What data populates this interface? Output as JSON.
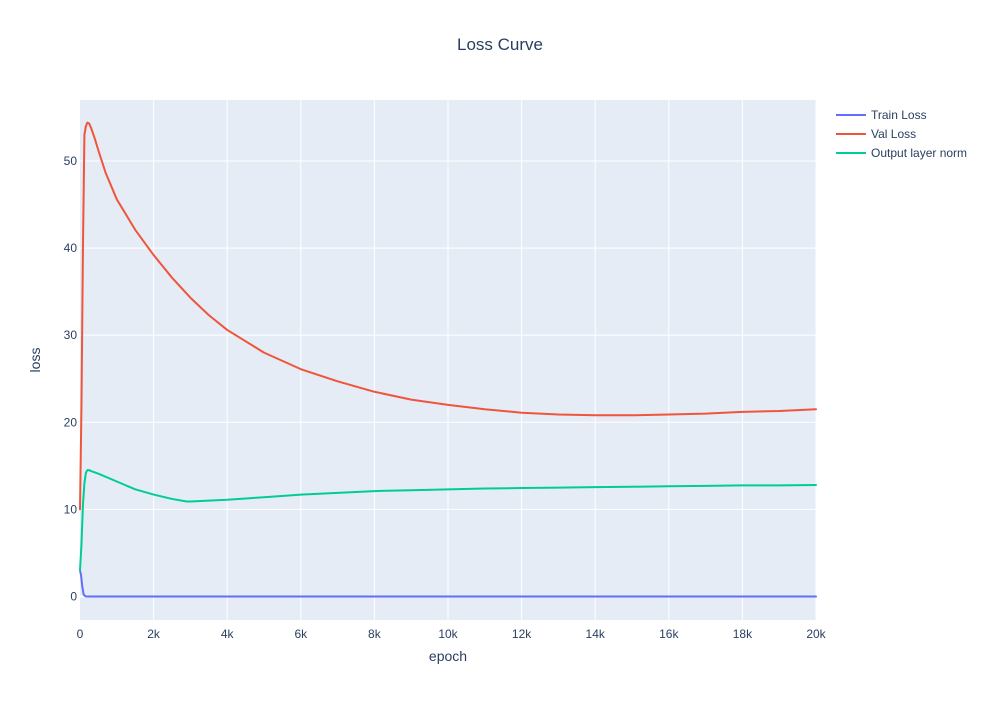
{
  "chart_data": {
    "type": "line",
    "title": "Loss Curve",
    "xlabel": "epoch",
    "ylabel": "loss",
    "xlim": [
      0,
      20000
    ],
    "ylim": [
      -2.7,
      57
    ],
    "x_ticks": [
      0,
      2000,
      4000,
      6000,
      8000,
      10000,
      12000,
      14000,
      16000,
      18000,
      20000
    ],
    "x_tick_labels": [
      "0",
      "2k",
      "4k",
      "6k",
      "8k",
      "10k",
      "12k",
      "14k",
      "16k",
      "18k",
      "20k"
    ],
    "y_ticks": [
      0,
      10,
      20,
      30,
      40,
      50
    ],
    "y_tick_labels": [
      "0",
      "10",
      "20",
      "30",
      "40",
      "50"
    ],
    "grid": true,
    "legend_position": "top-right-outside",
    "colors": {
      "plot_bg": "#E5ECF6",
      "grid": "#FFFFFF",
      "text": "#2a3f5f"
    },
    "series": [
      {
        "name": "Train Loss",
        "color": "#636EFA",
        "x": [
          0,
          30,
          60,
          100,
          150,
          200,
          500,
          1000,
          2000,
          4000,
          6000,
          8000,
          10000,
          12000,
          14000,
          16000,
          18000,
          20000
        ],
        "y": [
          3.0,
          2.4,
          1.2,
          0.2,
          0.02,
          0,
          0,
          0,
          0,
          0,
          0,
          0,
          0,
          0,
          0,
          0,
          0,
          0
        ]
      },
      {
        "name": "Val Loss",
        "color": "#EF553B",
        "x": [
          0,
          40,
          80,
          120,
          160,
          200,
          250,
          300,
          400,
          500,
          700,
          1000,
          1500,
          2000,
          2500,
          3000,
          3500,
          4000,
          5000,
          6000,
          7000,
          8000,
          9000,
          10000,
          11000,
          12000,
          13000,
          14000,
          14500,
          15000,
          16000,
          17000,
          18000,
          19000,
          20000
        ],
        "y": [
          10,
          22,
          40,
          53,
          54.0,
          54.4,
          54.3,
          53.8,
          52.6,
          51.2,
          48.6,
          45.6,
          42.1,
          39.2,
          36.6,
          34.3,
          32.3,
          30.6,
          28.0,
          26.1,
          24.7,
          23.5,
          22.6,
          22.0,
          21.5,
          21.1,
          20.9,
          20.8,
          20.8,
          20.8,
          20.9,
          21.0,
          21.2,
          21.3,
          21.5
        ]
      },
      {
        "name": "Output layer norm",
        "color": "#00CC96",
        "x": [
          0,
          40,
          80,
          120,
          160,
          200,
          250,
          300,
          500,
          1000,
          1500,
          2000,
          2500,
          2900,
          3000,
          3500,
          4000,
          5000,
          6000,
          7000,
          8000,
          9000,
          10000,
          11000,
          12000,
          13000,
          14000,
          15000,
          16000,
          17000,
          18000,
          19000,
          20000
        ],
        "y": [
          3.0,
          6.0,
          10.5,
          13.0,
          14.2,
          14.5,
          14.5,
          14.4,
          14.1,
          13.2,
          12.3,
          11.7,
          11.2,
          10.9,
          10.9,
          11.0,
          11.1,
          11.4,
          11.7,
          11.9,
          12.1,
          12.2,
          12.3,
          12.4,
          12.45,
          12.5,
          12.55,
          12.6,
          12.65,
          12.7,
          12.75,
          12.75,
          12.8
        ]
      }
    ]
  }
}
